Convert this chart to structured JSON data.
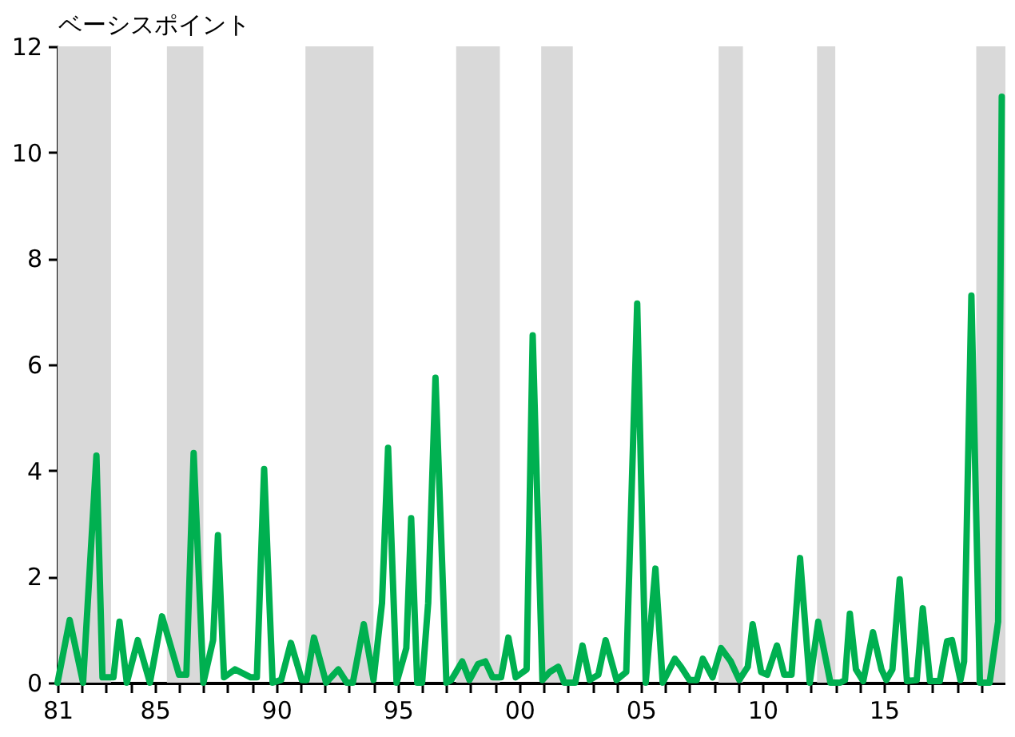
{
  "chart_data": {
    "type": "line",
    "ylabel": "ベーシスポイント",
    "x": [
      1981.0,
      1981.5,
      1982.05,
      1982.6,
      1982.85,
      1983.3,
      1983.55,
      1983.85,
      1984.3,
      1984.8,
      1985.3,
      1986.0,
      1986.3,
      1986.6,
      1987.0,
      1987.4,
      1987.6,
      1987.85,
      1988.3,
      1988.95,
      1989.2,
      1989.5,
      1989.85,
      1990.2,
      1990.6,
      1991.05,
      1991.25,
      1991.55,
      1992.05,
      1992.55,
      1992.9,
      1993.15,
      1993.6,
      1994.0,
      1994.35,
      1994.6,
      1994.95,
      1995.35,
      1995.55,
      1995.8,
      1996.0,
      1996.25,
      1996.55,
      1997.0,
      1997.2,
      1997.65,
      1997.95,
      1998.3,
      1998.6,
      1998.9,
      1999.25,
      1999.55,
      1999.85,
      2000.3,
      2000.55,
      2000.95,
      2001.25,
      2001.6,
      2001.85,
      2002.3,
      2002.6,
      2002.9,
      2003.25,
      2003.55,
      2004.0,
      2004.4,
      2004.85,
      2005.2,
      2005.6,
      2005.9,
      2006.4,
      2006.65,
      2007.0,
      2007.3,
      2007.55,
      2007.95,
      2008.3,
      2008.7,
      2009.05,
      2009.4,
      2009.6,
      2009.95,
      2010.2,
      2010.6,
      2010.9,
      2011.2,
      2011.55,
      2011.95,
      2012.3,
      2012.8,
      2013.2,
      2013.4,
      2013.6,
      2013.85,
      2014.15,
      2014.55,
      2014.9,
      2015.1,
      2015.35,
      2015.65,
      2015.95,
      2016.35,
      2016.6,
      2016.9,
      2017.3,
      2017.6,
      2017.8,
      2018.15,
      2018.3,
      2018.6,
      2018.95,
      2019.35,
      2019.7,
      2019.85
    ],
    "series": [
      {
        "color": "#00b050",
        "values": [
          0,
          1.18,
          0,
          4.28,
          0.1,
          0.1,
          1.15,
          0,
          0.8,
          0,
          1.25,
          0.15,
          0.15,
          4.33,
          0,
          0.8,
          2.78,
          0.1,
          0.25,
          0.1,
          0.1,
          4.03,
          0,
          0.05,
          0.75,
          0.05,
          0.05,
          0.85,
          0,
          0.25,
          0,
          0,
          1.1,
          0.05,
          1.5,
          4.43,
          0,
          0.65,
          3.1,
          0,
          0,
          1.5,
          5.75,
          0,
          0.05,
          0.4,
          0.05,
          0.35,
          0.4,
          0.1,
          0.1,
          0.85,
          0.1,
          0.25,
          6.55,
          0.05,
          0.2,
          0.3,
          0,
          0,
          0.7,
          0.05,
          0.15,
          0.8,
          0.05,
          0.2,
          7.15,
          0,
          2.15,
          0,
          0.45,
          0.3,
          0.05,
          0.05,
          0.45,
          0.1,
          0.65,
          0.4,
          0.05,
          0.3,
          1.1,
          0.2,
          0.15,
          0.7,
          0.15,
          0.15,
          2.35,
          0,
          1.15,
          0,
          0,
          0.05,
          1.3,
          0.25,
          0.03,
          0.95,
          0.25,
          0.05,
          0.25,
          1.95,
          0.03,
          0.05,
          1.4,
          0.03,
          0.03,
          0.78,
          0.8,
          0.05,
          0.4,
          7.3,
          0,
          0,
          1.15,
          11.05
        ]
      }
    ],
    "xlim": [
      1981,
      2020
    ],
    "xticks": [
      {
        "value": 1981,
        "label": "81"
      },
      {
        "value": 1982,
        "label": null
      },
      {
        "value": 1983,
        "label": null
      },
      {
        "value": 1984,
        "label": null
      },
      {
        "value": 1985,
        "label": "85"
      },
      {
        "value": 1986,
        "label": null
      },
      {
        "value": 1987,
        "label": null
      },
      {
        "value": 1988,
        "label": null
      },
      {
        "value": 1989,
        "label": null
      },
      {
        "value": 1990,
        "label": "90"
      },
      {
        "value": 1991,
        "label": null
      },
      {
        "value": 1992,
        "label": null
      },
      {
        "value": 1993,
        "label": null
      },
      {
        "value": 1994,
        "label": null
      },
      {
        "value": 1995,
        "label": "95"
      },
      {
        "value": 1996,
        "label": null
      },
      {
        "value": 1997,
        "label": null
      },
      {
        "value": 1998,
        "label": null
      },
      {
        "value": 1999,
        "label": null
      },
      {
        "value": 2000,
        "label": "00"
      },
      {
        "value": 2001,
        "label": null
      },
      {
        "value": 2002,
        "label": null
      },
      {
        "value": 2003,
        "label": null
      },
      {
        "value": 2004,
        "label": null
      },
      {
        "value": 2005,
        "label": "05"
      },
      {
        "value": 2006,
        "label": null
      },
      {
        "value": 2007,
        "label": null
      },
      {
        "value": 2008,
        "label": null
      },
      {
        "value": 2009,
        "label": null
      },
      {
        "value": 2010,
        "label": "10"
      },
      {
        "value": 2011,
        "label": null
      },
      {
        "value": 2012,
        "label": null
      },
      {
        "value": 2013,
        "label": null
      },
      {
        "value": 2014,
        "label": null
      },
      {
        "value": 2015,
        "label": "15"
      },
      {
        "value": 2016,
        "label": null
      },
      {
        "value": 2017,
        "label": null
      },
      {
        "value": 2018,
        "label": null
      },
      {
        "value": 2019,
        "label": null
      }
    ],
    "ylim": [
      0,
      12
    ],
    "yticks": [
      0,
      2,
      4,
      6,
      8,
      10,
      12
    ],
    "bands": [
      {
        "axis": "x",
        "from": 1981.0,
        "to": 1983.2,
        "color": "#d9d9d9"
      },
      {
        "axis": "x",
        "from": 1985.5,
        "to": 1987.0,
        "color": "#d9d9d9"
      },
      {
        "axis": "x",
        "from": 1991.2,
        "to": 1994.0,
        "color": "#d9d9d9"
      },
      {
        "axis": "x",
        "from": 1997.4,
        "to": 1999.2,
        "color": "#d9d9d9"
      },
      {
        "axis": "x",
        "from": 2000.9,
        "to": 2002.2,
        "color": "#d9d9d9"
      },
      {
        "axis": "x",
        "from": 2008.2,
        "to": 2009.2,
        "color": "#d9d9d9"
      },
      {
        "axis": "x",
        "from": 2012.25,
        "to": 2013.0,
        "color": "#d9d9d9"
      },
      {
        "axis": "x",
        "from": 2018.8,
        "to": 2020.0,
        "color": "#d9d9d9"
      }
    ],
    "grid": false,
    "marker": "none",
    "line_style": "solid"
  }
}
